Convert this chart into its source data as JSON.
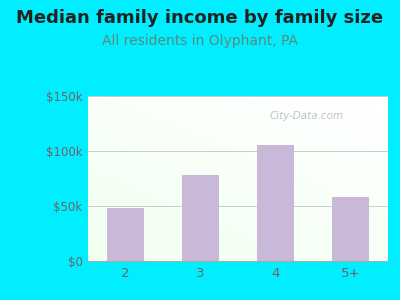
{
  "categories": [
    "2",
    "3",
    "4",
    "5+"
  ],
  "values": [
    48000,
    78000,
    105000,
    58000
  ],
  "bar_color": "#c9b8d8",
  "title": "Median family income by family size",
  "subtitle": "All residents in Olyphant, PA",
  "title_fontsize": 13,
  "subtitle_fontsize": 10,
  "subtitle_color": "#5a8a7a",
  "title_color": "#222222",
  "ylim": [
    0,
    150000
  ],
  "yticks": [
    0,
    50000,
    100000,
    150000
  ],
  "ytick_labels": [
    "$0",
    "$50k",
    "$100k",
    "$150k"
  ],
  "outer_bg": "#00eeff",
  "inner_bg_colors": [
    "#e8f5e8",
    "#f8fff8",
    "#ffffff",
    "#f0f8ff"
  ],
  "watermark": "City-Data.com",
  "tick_color": "#666666",
  "grid_color": "#cccccc"
}
